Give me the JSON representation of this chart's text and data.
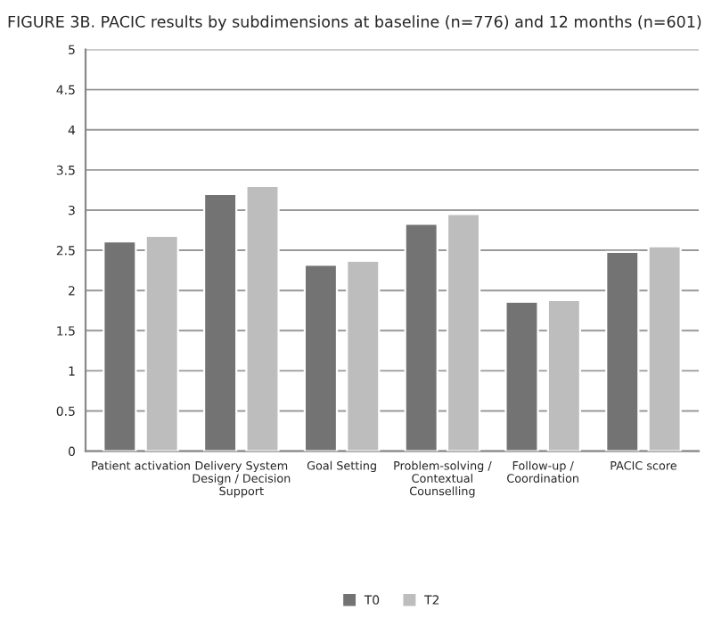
{
  "chart_data": {
    "type": "bar",
    "title": "FIGURE 3B. PACIC results by subdimensions at baseline (n=776) and 12 months (n=601)",
    "categories": [
      "Patient activation",
      "Delivery System\nDesign / Decision\nSupport",
      "Goal Setting",
      "Problem-solving /\nContextual\nCounselling",
      "Follow-up /\nCoordination",
      "PACIC score"
    ],
    "series": [
      {
        "name": "T0",
        "color": "#737373",
        "values": [
          2.61,
          3.2,
          2.32,
          2.83,
          1.86,
          2.48
        ]
      },
      {
        "name": "T2",
        "color": "#bdbdbd",
        "values": [
          2.68,
          3.3,
          2.37,
          2.95,
          1.88,
          2.55
        ]
      }
    ],
    "ylim": [
      0,
      5
    ],
    "yticks": [
      0,
      0.5,
      1,
      1.5,
      2,
      2.5,
      3,
      3.5,
      4,
      4.5,
      5
    ],
    "grid": "y",
    "legend": "bottom"
  }
}
